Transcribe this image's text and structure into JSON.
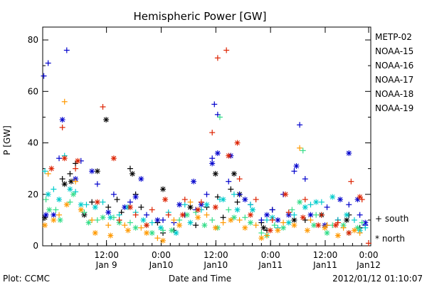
{
  "chart_data": {
    "type": "scatter",
    "title": "Hemispheric Power [GW]",
    "xlabel": "Date and Time",
    "ylabel": "P [GW]",
    "ylim": [
      0,
      85
    ],
    "xlim": [
      0,
      3
    ],
    "x_unit": "days since Jan 8 22:00 UT",
    "y_ticks": [
      0,
      20,
      40,
      60,
      80
    ],
    "x_ticks": [
      {
        "x": 0.5833,
        "time": "12:00",
        "date": "Jan 9"
      },
      {
        "x": 1.0833,
        "time": "0:00",
        "date": "Jan10"
      },
      {
        "x": 1.5833,
        "time": "12:00",
        "date": "Jan10"
      },
      {
        "x": 2.0833,
        "time": "0:00",
        "date": "Jan11"
      },
      {
        "x": 2.5833,
        "time": "12:00",
        "date": "Jan11"
      },
      {
        "x": 3.0833,
        "time": "0:00",
        "date": "Jan12"
      }
    ],
    "marker_legend": [
      {
        "symbol": "+",
        "label": "south"
      },
      {
        "symbol": "*",
        "label": "north"
      }
    ],
    "series": [
      {
        "name": "METP-02",
        "color": "#000000",
        "south": [
          [
            0.18,
            26
          ],
          [
            0.25,
            28
          ],
          [
            0.3,
            32
          ],
          [
            0.45,
            17
          ],
          [
            0.6,
            15
          ],
          [
            0.68,
            18
          ],
          [
            0.72,
            13
          ],
          [
            0.8,
            30
          ],
          [
            0.85,
            20
          ],
          [
            0.9,
            15
          ],
          [
            1.05,
            9
          ],
          [
            1.1,
            5
          ],
          [
            1.2,
            6
          ],
          [
            1.3,
            12
          ],
          [
            1.4,
            8
          ],
          [
            1.5,
            15
          ],
          [
            1.6,
            19
          ],
          [
            1.65,
            11
          ],
          [
            1.72,
            22
          ],
          [
            1.78,
            17
          ],
          [
            2.0,
            9
          ],
          [
            2.05,
            6
          ],
          [
            2.1,
            14
          ],
          [
            2.4,
            10
          ],
          [
            2.6,
            8
          ],
          [
            2.7,
            10
          ],
          [
            2.8,
            12
          ],
          [
            2.9,
            7
          ]
        ],
        "north": [
          [
            0.02,
            11
          ],
          [
            0.2,
            24
          ],
          [
            0.26,
            25
          ],
          [
            0.38,
            12
          ],
          [
            0.5,
            29
          ],
          [
            0.58,
            49
          ],
          [
            0.82,
            28
          ],
          [
            1.1,
            22
          ],
          [
            1.35,
            15
          ],
          [
            1.58,
            28
          ],
          [
            1.75,
            28
          ],
          [
            1.8,
            20
          ],
          [
            2.02,
            7
          ],
          [
            2.3,
            10
          ],
          [
            2.55,
            12
          ],
          [
            2.78,
            10
          ]
        ]
      },
      {
        "name": "NOAA-15",
        "color": "#0000cc",
        "south": [
          [
            0.01,
            66
          ],
          [
            0.05,
            71
          ],
          [
            0.22,
            76
          ],
          [
            0.15,
            34
          ],
          [
            0.35,
            33
          ],
          [
            0.5,
            24
          ],
          [
            0.65,
            20
          ],
          [
            0.8,
            17
          ],
          [
            0.95,
            12
          ],
          [
            1.1,
            10
          ],
          [
            1.2,
            9
          ],
          [
            1.3,
            12
          ],
          [
            1.4,
            14
          ],
          [
            1.5,
            20
          ],
          [
            1.55,
            34
          ],
          [
            1.57,
            55
          ],
          [
            1.6,
            51
          ],
          [
            1.7,
            25
          ],
          [
            1.8,
            20
          ],
          [
            1.9,
            16
          ],
          [
            2.0,
            10
          ],
          [
            2.1,
            14
          ],
          [
            2.2,
            20
          ],
          [
            2.3,
            29
          ],
          [
            2.35,
            47
          ],
          [
            2.4,
            26
          ],
          [
            2.6,
            15
          ],
          [
            2.7,
            10
          ],
          [
            2.8,
            16
          ],
          [
            2.9,
            12
          ],
          [
            2.95,
            8
          ]
        ],
        "north": [
          [
            0.03,
            12
          ],
          [
            0.1,
            12
          ],
          [
            0.18,
            49
          ],
          [
            0.3,
            26
          ],
          [
            0.45,
            29
          ],
          [
            0.6,
            13
          ],
          [
            0.75,
            15
          ],
          [
            0.85,
            19
          ],
          [
            0.9,
            26
          ],
          [
            1.05,
            10
          ],
          [
            1.25,
            16
          ],
          [
            1.38,
            25
          ],
          [
            1.45,
            16
          ],
          [
            1.55,
            32
          ],
          [
            1.6,
            36
          ],
          [
            1.72,
            35
          ],
          [
            1.85,
            18
          ],
          [
            2.05,
            12
          ],
          [
            2.15,
            10
          ],
          [
            2.25,
            12
          ],
          [
            2.32,
            31
          ],
          [
            2.45,
            12
          ],
          [
            2.58,
            8
          ],
          [
            2.72,
            18
          ],
          [
            2.8,
            36
          ],
          [
            2.88,
            18
          ],
          [
            2.95,
            9
          ]
        ]
      },
      {
        "name": "NOAA-16",
        "color": "#00cccc",
        "south": [
          [
            0.02,
            29
          ],
          [
            0.1,
            22
          ],
          [
            0.2,
            35
          ],
          [
            0.3,
            21
          ],
          [
            0.4,
            16
          ],
          [
            0.55,
            17
          ],
          [
            0.7,
            12
          ],
          [
            0.85,
            13
          ],
          [
            1.0,
            9
          ],
          [
            1.15,
            13
          ],
          [
            1.3,
            16
          ],
          [
            1.45,
            14
          ],
          [
            1.62,
            18
          ],
          [
            1.75,
            20
          ],
          [
            1.9,
            16
          ],
          [
            2.05,
            10
          ],
          [
            2.15,
            7
          ],
          [
            2.3,
            12
          ],
          [
            2.45,
            16
          ],
          [
            2.55,
            17
          ],
          [
            2.7,
            10
          ],
          [
            2.85,
            10
          ],
          [
            2.95,
            7
          ]
        ],
        "north": [
          [
            0.05,
            20
          ],
          [
            0.15,
            18
          ],
          [
            0.25,
            22
          ],
          [
            0.35,
            16
          ],
          [
            0.48,
            15
          ],
          [
            0.62,
            11
          ],
          [
            0.78,
            15
          ],
          [
            0.92,
            10
          ],
          [
            1.08,
            7
          ],
          [
            1.22,
            5
          ],
          [
            1.35,
            9
          ],
          [
            1.5,
            16
          ],
          [
            1.65,
            18
          ],
          [
            1.78,
            14
          ],
          [
            1.92,
            14
          ],
          [
            2.1,
            11
          ],
          [
            2.25,
            9
          ],
          [
            2.4,
            15
          ],
          [
            2.5,
            17
          ],
          [
            2.65,
            19
          ],
          [
            2.78,
            12
          ],
          [
            2.9,
            6
          ]
        ]
      },
      {
        "name": "NOAA-17",
        "color": "#33dd88",
        "south": [
          [
            0.03,
            18
          ],
          [
            0.12,
            14
          ],
          [
            0.25,
            17
          ],
          [
            0.38,
            13
          ],
          [
            0.5,
            10
          ],
          [
            0.65,
            11
          ],
          [
            0.8,
            9
          ],
          [
            0.95,
            8
          ],
          [
            1.1,
            6
          ],
          [
            1.25,
            10
          ],
          [
            1.4,
            13
          ],
          [
            1.55,
            10
          ],
          [
            1.62,
            50
          ],
          [
            1.7,
            14
          ],
          [
            1.85,
            11
          ],
          [
            2.0,
            5
          ],
          [
            2.12,
            8
          ],
          [
            2.28,
            14
          ],
          [
            2.38,
            37
          ],
          [
            2.5,
            12
          ],
          [
            2.65,
            8
          ],
          [
            2.8,
            5
          ],
          [
            2.92,
            9
          ]
        ],
        "north": [
          [
            0.06,
            14
          ],
          [
            0.16,
            10
          ],
          [
            0.28,
            20
          ],
          [
            0.42,
            9
          ],
          [
            0.55,
            11
          ],
          [
            0.7,
            9
          ],
          [
            0.85,
            7
          ],
          [
            1.0,
            5
          ],
          [
            1.18,
            6
          ],
          [
            1.32,
            12
          ],
          [
            1.48,
            8
          ],
          [
            1.6,
            7
          ],
          [
            1.75,
            11
          ],
          [
            1.9,
            9
          ],
          [
            2.05,
            4
          ],
          [
            2.2,
            7
          ],
          [
            2.35,
            17
          ],
          [
            2.48,
            8
          ],
          [
            2.6,
            5
          ],
          [
            2.75,
            8
          ],
          [
            2.88,
            7
          ]
        ]
      },
      {
        "name": "NOAA-18",
        "color": "#ff9900",
        "south": [
          [
            0.05,
            28
          ],
          [
            0.15,
            12
          ],
          [
            0.2,
            56
          ],
          [
            0.3,
            25
          ],
          [
            0.45,
            10
          ],
          [
            0.6,
            8
          ],
          [
            0.75,
            8
          ],
          [
            0.9,
            7
          ],
          [
            1.05,
            3
          ],
          [
            1.2,
            10
          ],
          [
            1.35,
            17
          ],
          [
            1.5,
            12
          ],
          [
            1.65,
            9
          ],
          [
            1.8,
            10
          ],
          [
            1.95,
            8
          ],
          [
            2.05,
            4
          ],
          [
            2.2,
            9
          ],
          [
            2.35,
            38
          ],
          [
            2.45,
            10
          ],
          [
            2.6,
            8
          ],
          [
            2.75,
            7
          ],
          [
            2.9,
            5
          ]
        ],
        "north": [
          [
            0.02,
            8
          ],
          [
            0.1,
            10
          ],
          [
            0.22,
            16
          ],
          [
            0.35,
            14
          ],
          [
            0.48,
            5
          ],
          [
            0.62,
            4
          ],
          [
            0.78,
            6
          ],
          [
            0.95,
            5
          ],
          [
            1.1,
            2
          ],
          [
            1.25,
            8
          ],
          [
            1.42,
            11
          ],
          [
            1.58,
            7
          ],
          [
            1.72,
            10
          ],
          [
            1.85,
            7
          ],
          [
            2.0,
            3
          ],
          [
            2.15,
            6
          ],
          [
            2.3,
            8
          ],
          [
            2.42,
            6
          ],
          [
            2.58,
            7
          ],
          [
            2.7,
            4
          ],
          [
            2.85,
            6
          ]
        ]
      },
      {
        "name": "NOAA-19",
        "color": "#dd2200",
        "south": [
          [
            0.18,
            46
          ],
          [
            0.3,
            30
          ],
          [
            0.55,
            54
          ],
          [
            0.7,
            10
          ],
          [
            0.85,
            12
          ],
          [
            1.0,
            14
          ],
          [
            1.15,
            12
          ],
          [
            1.3,
            18
          ],
          [
            1.45,
            17
          ],
          [
            1.55,
            44
          ],
          [
            1.6,
            73
          ],
          [
            1.68,
            76
          ],
          [
            1.8,
            26
          ],
          [
            1.95,
            18
          ],
          [
            2.1,
            10
          ],
          [
            2.25,
            13
          ],
          [
            2.4,
            18
          ],
          [
            2.55,
            12
          ],
          [
            2.7,
            9
          ],
          [
            2.82,
            25
          ],
          [
            2.92,
            18
          ],
          [
            2.98,
            1
          ]
        ],
        "north": [
          [
            0.08,
            30
          ],
          [
            0.2,
            34
          ],
          [
            0.32,
            33
          ],
          [
            0.5,
            17
          ],
          [
            0.65,
            34
          ],
          [
            0.8,
            15
          ],
          [
            0.95,
            8
          ],
          [
            1.12,
            18
          ],
          [
            1.28,
            12
          ],
          [
            1.42,
            14
          ],
          [
            1.58,
            15
          ],
          [
            1.7,
            35
          ],
          [
            1.78,
            40
          ],
          [
            1.9,
            12
          ],
          [
            2.08,
            6
          ],
          [
            2.22,
            20
          ],
          [
            2.38,
            11
          ],
          [
            2.52,
            8
          ],
          [
            2.68,
            8
          ],
          [
            2.8,
            5
          ],
          [
            2.9,
            19
          ]
        ]
      }
    ]
  },
  "footer": {
    "plot_credit": "Plot: CCMC",
    "timestamp": "2012/01/12 01:10:07"
  }
}
